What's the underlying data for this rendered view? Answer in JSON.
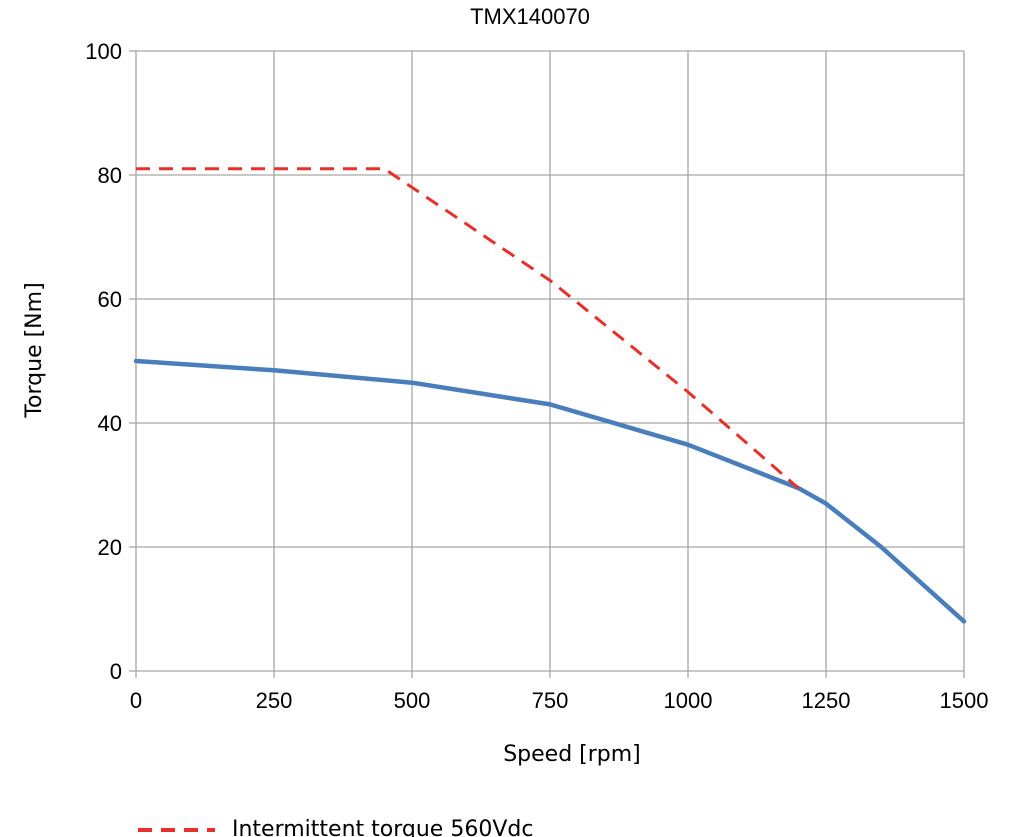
{
  "chart_data": {
    "type": "line",
    "title": "TMX140070",
    "xlabel": "Speed [rpm]",
    "ylabel": "Torque [Nm]",
    "xlim": [
      0,
      1500
    ],
    "ylim": [
      0,
      100
    ],
    "x_ticks": [
      "0",
      "250",
      "500",
      "750",
      "1000",
      "1250",
      "1500"
    ],
    "y_ticks": [
      "0",
      "20",
      "40",
      "60",
      "80",
      "100"
    ],
    "grid": true,
    "legend_position": "bottom",
    "series": [
      {
        "name": "Intermittent torque 560Vdc",
        "color": "#e8302a",
        "style": "dashed",
        "x": [
          0,
          450,
          750,
          1000,
          1200
        ],
        "y": [
          81,
          81,
          63,
          45,
          29.5
        ]
      },
      {
        "name": "",
        "color": "#4a7ebb",
        "style": "solid",
        "x": [
          0,
          250,
          500,
          750,
          1000,
          1200,
          1250,
          1350,
          1500
        ],
        "y": [
          50,
          48.5,
          46.5,
          43,
          36.5,
          29.5,
          27,
          20,
          8
        ]
      }
    ]
  }
}
